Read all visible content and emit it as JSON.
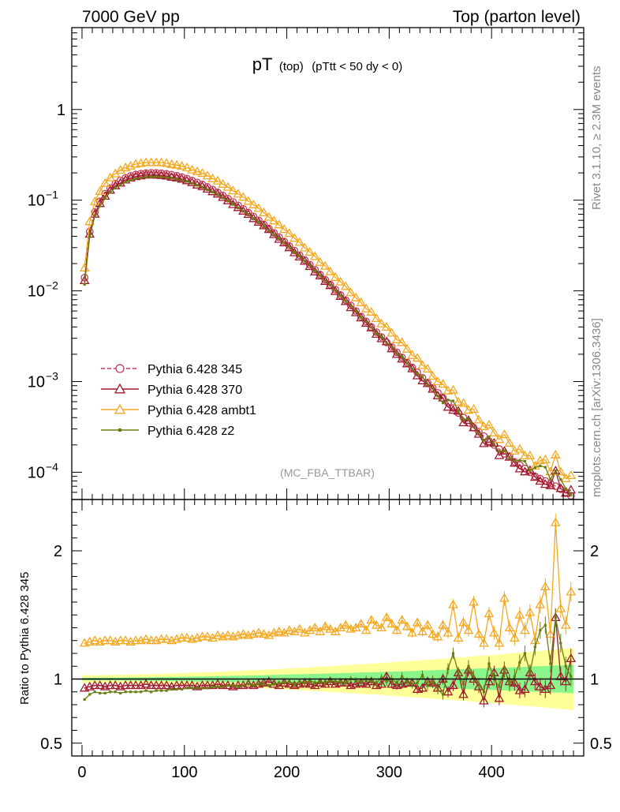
{
  "header": {
    "left": "7000 GeV pp",
    "right": "Top (parton level)"
  },
  "side": {
    "rivet": "Rivet 3.1.10, ≥ 2.3M events",
    "mcplots": "mcplots.cern.ch [arXiv:1306.3436]"
  },
  "chart_data": [
    {
      "type": "line",
      "title": "pT",
      "title_sub": "(top)",
      "title_cond": "(pTtt < 50 dy < 0)",
      "watermark": "(MC_FBA_TTBAR)",
      "xlim": [
        -10,
        490
      ],
      "ylim": [
        5e-05,
        8
      ],
      "yscale": "log",
      "y_ticks": [
        {
          "value": 1,
          "label": "1"
        },
        {
          "value": 0.1,
          "base": "10",
          "exp": "−1"
        },
        {
          "value": 0.01,
          "base": "10",
          "exp": "−2"
        },
        {
          "value": 0.001,
          "base": "10",
          "exp": "−3"
        },
        {
          "value": 0.0001,
          "base": "10",
          "exp": "−4"
        }
      ],
      "legend_position": "lower-left",
      "series": [
        {
          "name": "Pythia 6.428 345",
          "color": "#c33b5a",
          "marker": "circle-open",
          "dashed": true,
          "scale": 1.0
        },
        {
          "name": "Pythia 6.428 370",
          "color": "#a0192d",
          "marker": "triangle-open",
          "dashed": false,
          "scale": 0.95
        },
        {
          "name": "Pythia 6.428 ambt1",
          "color": "#f4a820",
          "marker": "triangle-open",
          "dashed": false,
          "scale": 1.3
        },
        {
          "name": "Pythia 6.428 z2",
          "color": "#6b7d12",
          "marker": "dot",
          "dashed": false,
          "scale": 0.9
        }
      ],
      "x": [
        2.5,
        7.5,
        12.5,
        17.5,
        22.5,
        27.5,
        32.5,
        37.5,
        42.5,
        47.5,
        52.5,
        57.5,
        62.5,
        67.5,
        72.5,
        77.5,
        82.5,
        87.5,
        92.5,
        97.5,
        102.5,
        107.5,
        112.5,
        117.5,
        122.5,
        127.5,
        132.5,
        137.5,
        142.5,
        147.5,
        152.5,
        157.5,
        162.5,
        167.5,
        172.5,
        177.5,
        182.5,
        187.5,
        192.5,
        197.5,
        202.5,
        207.5,
        212.5,
        217.5,
        222.5,
        227.5,
        232.5,
        237.5,
        242.5,
        247.5,
        252.5,
        257.5,
        262.5,
        267.5,
        272.5,
        277.5,
        282.5,
        287.5,
        292.5,
        297.5,
        302.5,
        307.5,
        312.5,
        317.5,
        322.5,
        327.5,
        332.5,
        337.5,
        342.5,
        347.5,
        352.5,
        357.5,
        362.5,
        367.5,
        372.5,
        377.5,
        382.5,
        387.5,
        392.5,
        397.5,
        402.5,
        407.5,
        412.5,
        417.5,
        422.5,
        427.5,
        432.5,
        437.5,
        442.5,
        447.5,
        452.5,
        457.5,
        462.5,
        467.5,
        472.5,
        477.5
      ],
      "ref_values": [
        0.014,
        0.045,
        0.074,
        0.097,
        0.118,
        0.136,
        0.152,
        0.165,
        0.176,
        0.185,
        0.192,
        0.196,
        0.199,
        0.2,
        0.2,
        0.198,
        0.195,
        0.191,
        0.186,
        0.18,
        0.173,
        0.165,
        0.157,
        0.149,
        0.14,
        0.131,
        0.122,
        0.113,
        0.104,
        0.0955,
        0.0875,
        0.08,
        0.0728,
        0.0661,
        0.0598,
        0.054,
        0.0486,
        0.0436,
        0.0391,
        0.035,
        0.0312,
        0.0278,
        0.0247,
        0.0219,
        0.0194,
        0.0171,
        0.0151,
        0.0133,
        0.0117,
        0.0103,
        0.009,
        0.0079,
        0.0069,
        0.006,
        0.0052,
        0.0046,
        0.004,
        0.0035,
        0.0031,
        0.0027,
        0.0024,
        0.0021,
        0.00185,
        0.00162,
        0.00143,
        0.00126,
        0.0011,
        0.00097,
        0.00085,
        0.00075,
        0.00066,
        0.00058,
        0.00051,
        0.00045,
        0.0004,
        0.00035,
        0.00031,
        0.00028,
        0.00025,
        0.00022,
        0.0002,
        0.00018,
        0.00016,
        0.00015,
        0.00013,
        0.00012,
        0.00011,
        0.0001,
        9e-05,
        8.5e-05,
        8e-05,
        7.5e-05,
        7e-05,
        6.5e-05,
        6e-05,
        5.5e-05
      ]
    },
    {
      "type": "line",
      "ylabel": "Ratio to Pythia 6.428 345",
      "xlim": [
        -10,
        490
      ],
      "ylim": [
        0.4,
        2.4
      ],
      "y_ticks": [
        {
          "value": 0.5,
          "label": "0.5"
        },
        {
          "value": 1,
          "label": "1"
        },
        {
          "value": 2,
          "label": "2"
        }
      ],
      "x_ticks": [
        {
          "value": 0,
          "label": "0"
        },
        {
          "value": 100,
          "label": "100"
        },
        {
          "value": 200,
          "label": "200"
        },
        {
          "value": 300,
          "label": "300"
        },
        {
          "value": 400,
          "label": "400"
        }
      ],
      "bands": {
        "yellow": {
          "color": "#ffff99",
          "halfwidth_start": 0.03,
          "halfwidth_end": 0.24
        },
        "green": {
          "color": "#8af58a",
          "halfwidth_start": 0.01,
          "halfwidth_end": 0.11
        }
      },
      "ratio_series": [
        {
          "name": "Pythia 6.428 370",
          "base": 0.95,
          "values": [
            0.93,
            0.94,
            0.95,
            0.95,
            0.94,
            0.95,
            0.95,
            0.94,
            0.95,
            0.95,
            0.95,
            0.95,
            0.96,
            0.95,
            0.95,
            0.95,
            0.95,
            0.94,
            0.95,
            0.95,
            0.95,
            0.95,
            0.94,
            0.95,
            0.95,
            0.95,
            0.96,
            0.95,
            0.95,
            0.94,
            0.95,
            0.95,
            0.96,
            0.95,
            0.96,
            0.97,
            0.98,
            0.96,
            0.95,
            0.97,
            0.96,
            0.95,
            0.96,
            0.97,
            0.96,
            0.95,
            0.97,
            0.96,
            0.98,
            0.96,
            0.97,
            0.97,
            0.95,
            0.96,
            0.97,
            0.96,
            0.98,
            0.95,
            0.96,
            1.02,
            0.96,
            0.95,
            0.96,
            0.97,
            0.97,
            0.92,
            0.93,
            0.98,
            0.97,
            0.93,
            1.0,
            0.9,
            0.95,
            1.05,
            0.88,
            1.07,
            1.0,
            0.94,
            0.83,
            0.98,
            1.05,
            0.85,
            1.07,
            0.98,
            0.97,
            0.91,
            0.92,
            1.05,
            0.98,
            0.94,
            0.92,
            0.95,
            1.48,
            1.02,
            0.98,
            1.16
          ]
        },
        {
          "name": "Pythia 6.428 ambt1",
          "base": 1.3,
          "values": [
            1.28,
            1.29,
            1.3,
            1.29,
            1.3,
            1.3,
            1.29,
            1.3,
            1.3,
            1.29,
            1.3,
            1.3,
            1.31,
            1.3,
            1.3,
            1.31,
            1.31,
            1.3,
            1.31,
            1.32,
            1.32,
            1.31,
            1.32,
            1.33,
            1.33,
            1.32,
            1.34,
            1.33,
            1.34,
            1.33,
            1.34,
            1.35,
            1.34,
            1.35,
            1.36,
            1.35,
            1.34,
            1.36,
            1.37,
            1.36,
            1.38,
            1.37,
            1.39,
            1.36,
            1.38,
            1.4,
            1.37,
            1.41,
            1.39,
            1.37,
            1.4,
            1.42,
            1.39,
            1.4,
            1.43,
            1.38,
            1.46,
            1.42,
            1.4,
            1.48,
            1.43,
            1.38,
            1.46,
            1.41,
            1.36,
            1.44,
            1.37,
            1.42,
            1.35,
            1.33,
            1.42,
            1.36,
            1.58,
            1.32,
            1.44,
            1.38,
            1.6,
            1.35,
            1.28,
            1.51,
            1.36,
            1.28,
            1.63,
            1.4,
            1.32,
            1.5,
            1.38,
            1.52,
            1.3,
            1.58,
            1.72,
            1.35,
            2.22,
            1.55,
            1.42,
            1.68
          ]
        },
        {
          "name": "Pythia 6.428 z2",
          "base": 0.9,
          "values": [
            0.84,
            0.88,
            0.9,
            0.89,
            0.89,
            0.9,
            0.9,
            0.89,
            0.9,
            0.9,
            0.9,
            0.9,
            0.91,
            0.9,
            0.91,
            0.91,
            0.91,
            0.92,
            0.92,
            0.92,
            0.93,
            0.93,
            0.93,
            0.93,
            0.93,
            0.94,
            0.94,
            0.94,
            0.95,
            0.95,
            0.94,
            0.95,
            0.96,
            0.95,
            0.96,
            0.96,
            0.95,
            0.96,
            0.97,
            0.97,
            0.98,
            0.96,
            0.98,
            0.97,
            0.99,
            0.97,
            0.98,
            0.97,
            0.99,
            0.98,
            0.98,
            0.97,
            1.0,
            0.99,
            0.98,
            1.0,
            0.99,
            0.97,
            1.01,
            0.98,
            1.0,
            0.97,
            1.02,
            0.98,
            0.96,
            0.97,
            1.03,
            0.95,
            0.99,
            0.92,
            0.88,
            1.08,
            1.2,
            1.05,
            0.96,
            1.1,
            1.02,
            0.96,
            0.9,
            1.12,
            1.0,
            0.94,
            1.08,
            0.96,
            1.02,
            1.13,
            1.2,
            1.05,
            1.25,
            1.38,
            1.42,
            1.12,
            1.48,
            1.28,
            1.1,
            1.02
          ]
        }
      ]
    }
  ]
}
